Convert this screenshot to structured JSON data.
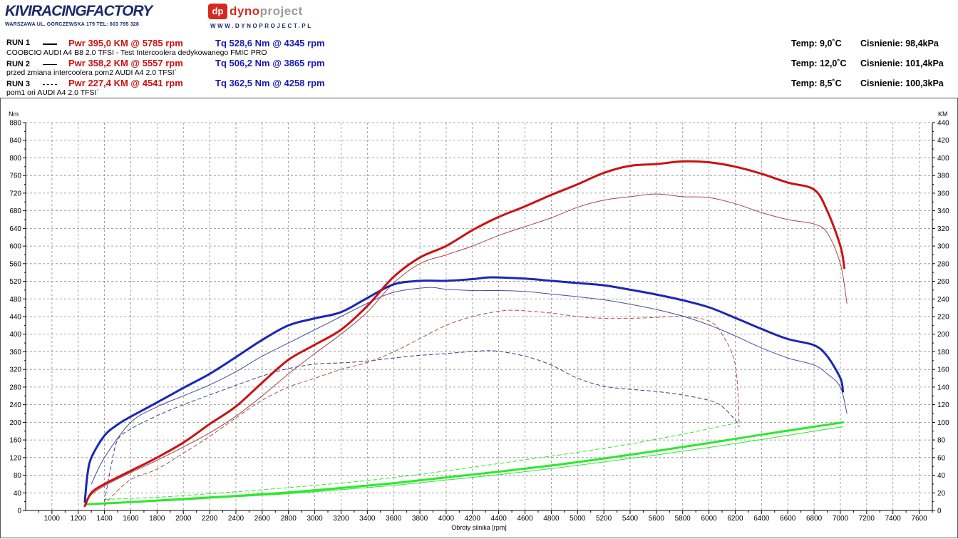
{
  "header": {
    "brand": "KIVIRACINGFACTORY",
    "brand_address": "WARSZAWA UL. GÓRCZEWSKA 179    TEL: 603 795 328",
    "dyno_badge": "dp",
    "dyno_word_a": "dyno",
    "dyno_word_b": "project",
    "dyno_url": "WWW.DYNOPROJECT.PL"
  },
  "runs": [
    {
      "label": "RUN 1",
      "line_style": "solid-thick",
      "pwr": "Pwr  395,0 KM @ 5785 rpm",
      "tq": "Tq 528,6 Nm @ 4345 rpm",
      "desc": "COOBCIO AUDI A4 B8 2.0 TFSI - Test Intercoolera dedykowanego FMIC PRO",
      "temp": "Temp: 9,0˚C",
      "pressure": "Cisnienie: 98,4kPa"
    },
    {
      "label": "RUN 2",
      "line_style": "solid-thin",
      "pwr": "Pwr  358,2 KM @ 5557 rpm",
      "tq": "Tq 506,2 Nm @ 3865 rpm",
      "desc": "przed zmiana intercoolera pom2 AUDI A4 2.0 TFSI`",
      "temp": "Temp: 12,0˚C",
      "pressure": "Cisnienie: 101,4kPa"
    },
    {
      "label": "RUN 3",
      "line_style": "dashed",
      "pwr": "Pwr  227,4 KM @ 4541 rpm",
      "tq": "Tq 362,5 Nm @ 4258 rpm",
      "desc": "pom1 ori AUDI A4 2.0 TFSI`",
      "temp": "Temp: 8,5˚C",
      "pressure": "Cisnienie: 100,3kPa"
    }
  ],
  "chart_data": {
    "type": "line",
    "title": "",
    "xlabel": "Obroty silnika [rpm]",
    "ylabel_left": "Nm",
    "ylabel_right": "KM",
    "xlim": [
      800,
      7700
    ],
    "ylim_left": [
      0,
      880
    ],
    "ylim_right": [
      0,
      440
    ],
    "x_ticks": [
      1000,
      1200,
      1400,
      1600,
      1800,
      2000,
      2200,
      2400,
      2600,
      2800,
      3000,
      3200,
      3400,
      3600,
      3800,
      4000,
      4200,
      4400,
      4600,
      4800,
      5000,
      5200,
      5400,
      5600,
      5800,
      6000,
      6200,
      6400,
      6600,
      6800,
      7000,
      7200,
      7400,
      7600
    ],
    "y_ticks_left": [
      0,
      40,
      80,
      120,
      160,
      200,
      240,
      280,
      320,
      360,
      400,
      440,
      480,
      520,
      560,
      600,
      640,
      680,
      720,
      760,
      800,
      840,
      880
    ],
    "y_ticks_right": [
      0,
      20,
      40,
      60,
      80,
      100,
      120,
      140,
      160,
      180,
      200,
      220,
      240,
      260,
      280,
      300,
      320,
      340,
      360,
      380,
      400,
      420,
      440
    ],
    "grid": true,
    "colors": {
      "power": "#cc1111",
      "torque": "#1a28b5",
      "loss": "#2ee82e",
      "power_thin": "#a84545",
      "torque_thin": "#4a4a9c",
      "power_dashed": "#a85050",
      "torque_dashed": "#3a3a8a"
    },
    "series": [
      {
        "name": "RUN 1 Pwr",
        "axis": "right",
        "style": "solid-thick",
        "color": "#cc1111",
        "x": [
          1250,
          1300,
          1400,
          1600,
          1800,
          2000,
          2200,
          2400,
          2600,
          2800,
          3000,
          3200,
          3400,
          3600,
          3800,
          4000,
          4200,
          4400,
          4600,
          4800,
          5000,
          5200,
          5400,
          5600,
          5800,
          6000,
          6200,
          6400,
          6600,
          6800,
          6900,
          7000,
          7030
        ],
        "y": [
          5,
          20,
          30,
          45,
          60,
          77,
          98,
          118,
          145,
          171,
          188,
          205,
          232,
          265,
          287,
          300,
          318,
          333,
          345,
          358,
          370,
          383,
          391,
          393,
          396,
          395,
          390,
          382,
          372,
          364,
          340,
          300,
          275
        ]
      },
      {
        "name": "RUN 1 Tq",
        "axis": "left",
        "style": "solid-thick",
        "color": "#1a28b5",
        "x": [
          1250,
          1270,
          1300,
          1400,
          1500,
          1600,
          1800,
          2000,
          2200,
          2400,
          2600,
          2800,
          3000,
          3200,
          3400,
          3600,
          3800,
          4000,
          4200,
          4345,
          4600,
          4800,
          5000,
          5200,
          5400,
          5600,
          5800,
          6000,
          6200,
          6400,
          6600,
          6800,
          6900,
          7000,
          7020
        ],
        "y": [
          20,
          80,
          120,
          170,
          195,
          213,
          245,
          278,
          310,
          348,
          387,
          420,
          436,
          450,
          482,
          513,
          521,
          521,
          525,
          529,
          526,
          521,
          516,
          511,
          501,
          490,
          477,
          461,
          437,
          412,
          389,
          375,
          350,
          300,
          270
        ]
      },
      {
        "name": "RUN 2 Pwr",
        "axis": "right",
        "style": "solid-thin",
        "color": "#a84545",
        "x": [
          1250,
          1300,
          1400,
          1600,
          1800,
          2000,
          2200,
          2400,
          2600,
          2800,
          3000,
          3200,
          3400,
          3600,
          3800,
          4000,
          4200,
          4400,
          4600,
          4800,
          5000,
          5200,
          5400,
          5600,
          5800,
          6000,
          6200,
          6400,
          6600,
          6800,
          6900,
          7000,
          7050
        ],
        "y": [
          8,
          18,
          28,
          43,
          57,
          72,
          88,
          107,
          130,
          155,
          178,
          200,
          225,
          258,
          280,
          290,
          300,
          312,
          322,
          332,
          344,
          352,
          356,
          359,
          356,
          355,
          348,
          338,
          330,
          325,
          315,
          280,
          235
        ]
      },
      {
        "name": "RUN 2 Tq",
        "axis": "left",
        "style": "solid-thin",
        "color": "#4a4a9c",
        "x": [
          1300,
          1400,
          1600,
          1800,
          2000,
          2200,
          2400,
          2600,
          2800,
          3000,
          3200,
          3400,
          3600,
          3865,
          4000,
          4200,
          4400,
          4600,
          4800,
          5000,
          5200,
          5400,
          5600,
          5800,
          6000,
          6200,
          6400,
          6600,
          6800,
          6900,
          7000,
          7050
        ],
        "y": [
          60,
          120,
          200,
          235,
          260,
          285,
          315,
          350,
          380,
          410,
          440,
          470,
          495,
          506,
          502,
          499,
          499,
          497,
          491,
          485,
          478,
          468,
          456,
          441,
          421,
          396,
          369,
          346,
          330,
          310,
          280,
          220
        ]
      },
      {
        "name": "RUN 3 Pwr",
        "axis": "right",
        "style": "dashed",
        "color": "#a85050",
        "x": [
          1400,
          1450,
          1600,
          1800,
          2000,
          2200,
          2400,
          2600,
          2800,
          3000,
          3200,
          3400,
          3600,
          3800,
          4000,
          4200,
          4400,
          4541,
          4800,
          5000,
          5200,
          5400,
          5600,
          5800,
          6000,
          6100,
          6200,
          6230
        ],
        "y": [
          5,
          15,
          35,
          47,
          65,
          84,
          105,
          125,
          140,
          150,
          160,
          168,
          180,
          195,
          210,
          220,
          226,
          227,
          224,
          220,
          218,
          218,
          219,
          220,
          215,
          200,
          165,
          100
        ]
      },
      {
        "name": "RUN 3 Tq",
        "axis": "left",
        "style": "dashed",
        "color": "#3a3a8a",
        "x": [
          1400,
          1450,
          1500,
          1600,
          1800,
          2000,
          2200,
          2400,
          2600,
          2800,
          3000,
          3200,
          3400,
          3600,
          3800,
          4000,
          4258,
          4400,
          4600,
          4800,
          5000,
          5200,
          5400,
          5600,
          5800,
          6000,
          6100,
          6200,
          6230
        ],
        "y": [
          20,
          100,
          160,
          185,
          215,
          240,
          262,
          284,
          305,
          322,
          332,
          335,
          339,
          346,
          352,
          356,
          362,
          361,
          350,
          330,
          300,
          282,
          275,
          270,
          262,
          250,
          236,
          205,
          190
        ]
      },
      {
        "name": "RUN 1 loss",
        "axis": "left",
        "style": "solid-thick",
        "color": "#2ee82e",
        "x": [
          1260,
          1600,
          2000,
          2400,
          2800,
          3200,
          3600,
          4000,
          4400,
          4800,
          5200,
          5600,
          6000,
          6400,
          6800,
          7020
        ],
        "y": [
          14,
          19,
          26,
          33,
          41,
          51,
          62,
          75,
          88,
          102,
          118,
          135,
          153,
          172,
          190,
          200
        ]
      },
      {
        "name": "RUN 2 loss",
        "axis": "left",
        "style": "solid-thin",
        "color": "#2ee82e",
        "x": [
          1260,
          1600,
          2000,
          2400,
          2800,
          3200,
          3600,
          4000,
          4400,
          4800,
          5200,
          5600,
          6000,
          6400,
          6800,
          7020
        ],
        "y": [
          14,
          18,
          24,
          31,
          38,
          47,
          57,
          69,
          81,
          95,
          110,
          126,
          143,
          161,
          180,
          190
        ]
      },
      {
        "name": "RUN 3 loss",
        "axis": "left",
        "style": "dashed",
        "color": "#2ee82e",
        "x": [
          1400,
          1800,
          2200,
          2600,
          3000,
          3400,
          3800,
          4200,
          4600,
          5000,
          5400,
          5800,
          6200
        ],
        "y": [
          25,
          30,
          38,
          47,
          57,
          68,
          82,
          98,
          115,
          132,
          151,
          173,
          198
        ]
      }
    ]
  }
}
